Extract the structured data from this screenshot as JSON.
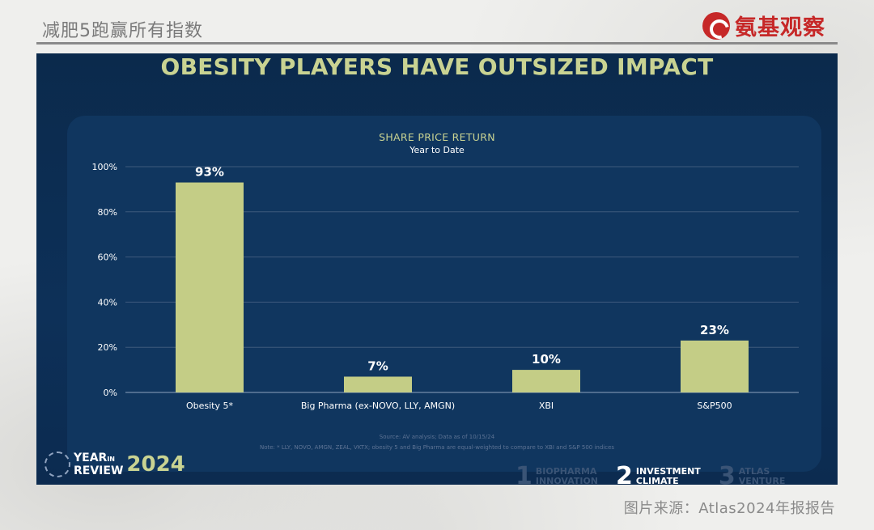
{
  "page": {
    "top_title": "减肥5跑赢所有指数",
    "logo_text": "氨基观察",
    "caption": "图片来源：Atlas2024年报报告"
  },
  "slide": {
    "title": "OBESITY PLAYERS HAVE OUTSIZED IMPACT",
    "source": "Source: AV analysis; Data as of 10/15/24",
    "note": "Note: * LLY, NOVO, AMGN, ZEAL, VKTX; obesity 5 and Big Pharma are equal-weighted to compare to XBI and S&P 500 indices",
    "branding": {
      "line1": "YEAR",
      "line1_small": "IN",
      "line2": "REVIEW",
      "year": "2024"
    },
    "footer_tabs": [
      {
        "num": "1",
        "label1": "BIOPHARMA",
        "label2": "INNOVATION",
        "active": false
      },
      {
        "num": "2",
        "label1": "INVESTMENT",
        "label2": "CLIMATE",
        "active": true
      },
      {
        "num": "3",
        "label1": "ATLAS",
        "label2": "VENTURE",
        "active": false
      }
    ]
  },
  "colors": {
    "bar": "#c4cd86",
    "accent_text": "#c9d392",
    "slide_bg": "#0c2d52",
    "brand_red": "#c62828"
  },
  "chart_data": {
    "type": "bar",
    "title": "SHARE PRICE RETURN",
    "subtitle": "Year to Date",
    "categories": [
      "Obesity 5*",
      "Big Pharma (ex-NOVO, LLY, AMGN)",
      "XBI",
      "S&P500"
    ],
    "values": [
      93,
      7,
      10,
      23
    ],
    "data_labels": [
      "93%",
      "7%",
      "10%",
      "23%"
    ],
    "ylim": [
      0,
      100
    ],
    "yticks": [
      0,
      20,
      40,
      60,
      80,
      100
    ],
    "ytick_labels": [
      "0%",
      "20%",
      "40%",
      "60%",
      "80%",
      "100%"
    ],
    "grid": true,
    "xlabel": "",
    "ylabel": ""
  }
}
